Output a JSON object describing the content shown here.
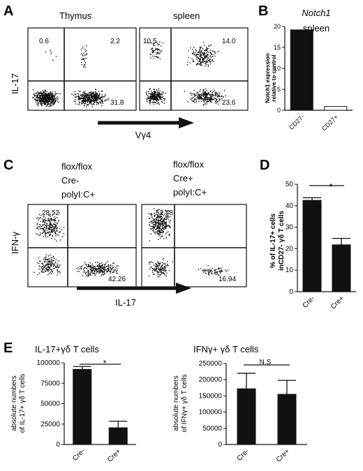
{
  "panels": {
    "A": {
      "letter": "A",
      "title_left": "Thymus",
      "title_right": "spleen",
      "y_label": "IL-17",
      "x_label": "Vγ4",
      "thymus": {
        "ul": "0.6",
        "ur": "2.2",
        "lr": "31.8"
      },
      "spleen": {
        "ul": "10.5",
        "ur": "14.0",
        "lr": "23.6"
      }
    },
    "B": {
      "letter": "B",
      "title_gene": "Notch1",
      "title_tissue": "spleen",
      "ylabel_line1": "Notch1 expression",
      "ylabel_line2": "relative to control"
    },
    "C": {
      "letter": "C",
      "cond_left": [
        "flox/flox",
        "Cre-",
        "polyI:C+"
      ],
      "cond_right": [
        "flox/flox",
        "Cre+",
        "polyI:C+"
      ],
      "y_label": "IFN-γ",
      "x_label": "IL-17",
      "left": {
        "ul": "28.52",
        "lr": "42.26"
      },
      "right": {
        "ul": "52.48",
        "lr": "16.94"
      }
    },
    "D": {
      "letter": "D",
      "ylabel_line1": "% of IL-17+ cells",
      "ylabel_line2": "inCD27- γδ T cells",
      "sig": "*"
    },
    "E": {
      "letter": "E",
      "title_left": "IL-17+γδ T cells",
      "title_right": "IFNγ+ γδ T cells",
      "ylabel_left_1": "absolute numbers",
      "ylabel_left_2": "of IL-17+ γδ T cells",
      "ylabel_right_1": "absolute numbers",
      "ylabel_right_2": "of IFNγ+ γδ T cells",
      "sig_left": "*",
      "sig_right": "N.S"
    }
  },
  "chart_data": [
    {
      "id": "B",
      "type": "bar",
      "categories": [
        "CD27-",
        "CD27+"
      ],
      "values": [
        19.2,
        0.9
      ],
      "fills": [
        "#111111",
        "#ffffff"
      ],
      "ylim": [
        0,
        20
      ],
      "yticks": [
        0,
        5,
        10,
        15,
        20
      ]
    },
    {
      "id": "D",
      "type": "bar",
      "categories": [
        "Cre-",
        "Cre+"
      ],
      "values": [
        42.5,
        21.8
      ],
      "errors": [
        1.2,
        3.0
      ],
      "ylim": [
        0,
        50
      ],
      "yticks": [
        0,
        10,
        20,
        30,
        40,
        50
      ]
    },
    {
      "id": "E-left",
      "type": "bar",
      "categories": [
        "Cre-",
        "Cre+"
      ],
      "values": [
        92000,
        20500
      ],
      "errors": [
        3500,
        8000
      ],
      "ylim": [
        0,
        100000
      ],
      "yticks": [
        0,
        25000,
        50000,
        75000,
        100000
      ]
    },
    {
      "id": "E-right",
      "type": "bar",
      "categories": [
        "Cre-",
        "Cre+"
      ],
      "values": [
        172000,
        155000
      ],
      "errors": [
        48000,
        43000
      ],
      "ylim": [
        0,
        250000
      ],
      "yticks": [
        0,
        50000,
        100000,
        150000,
        200000,
        250000
      ]
    }
  ]
}
